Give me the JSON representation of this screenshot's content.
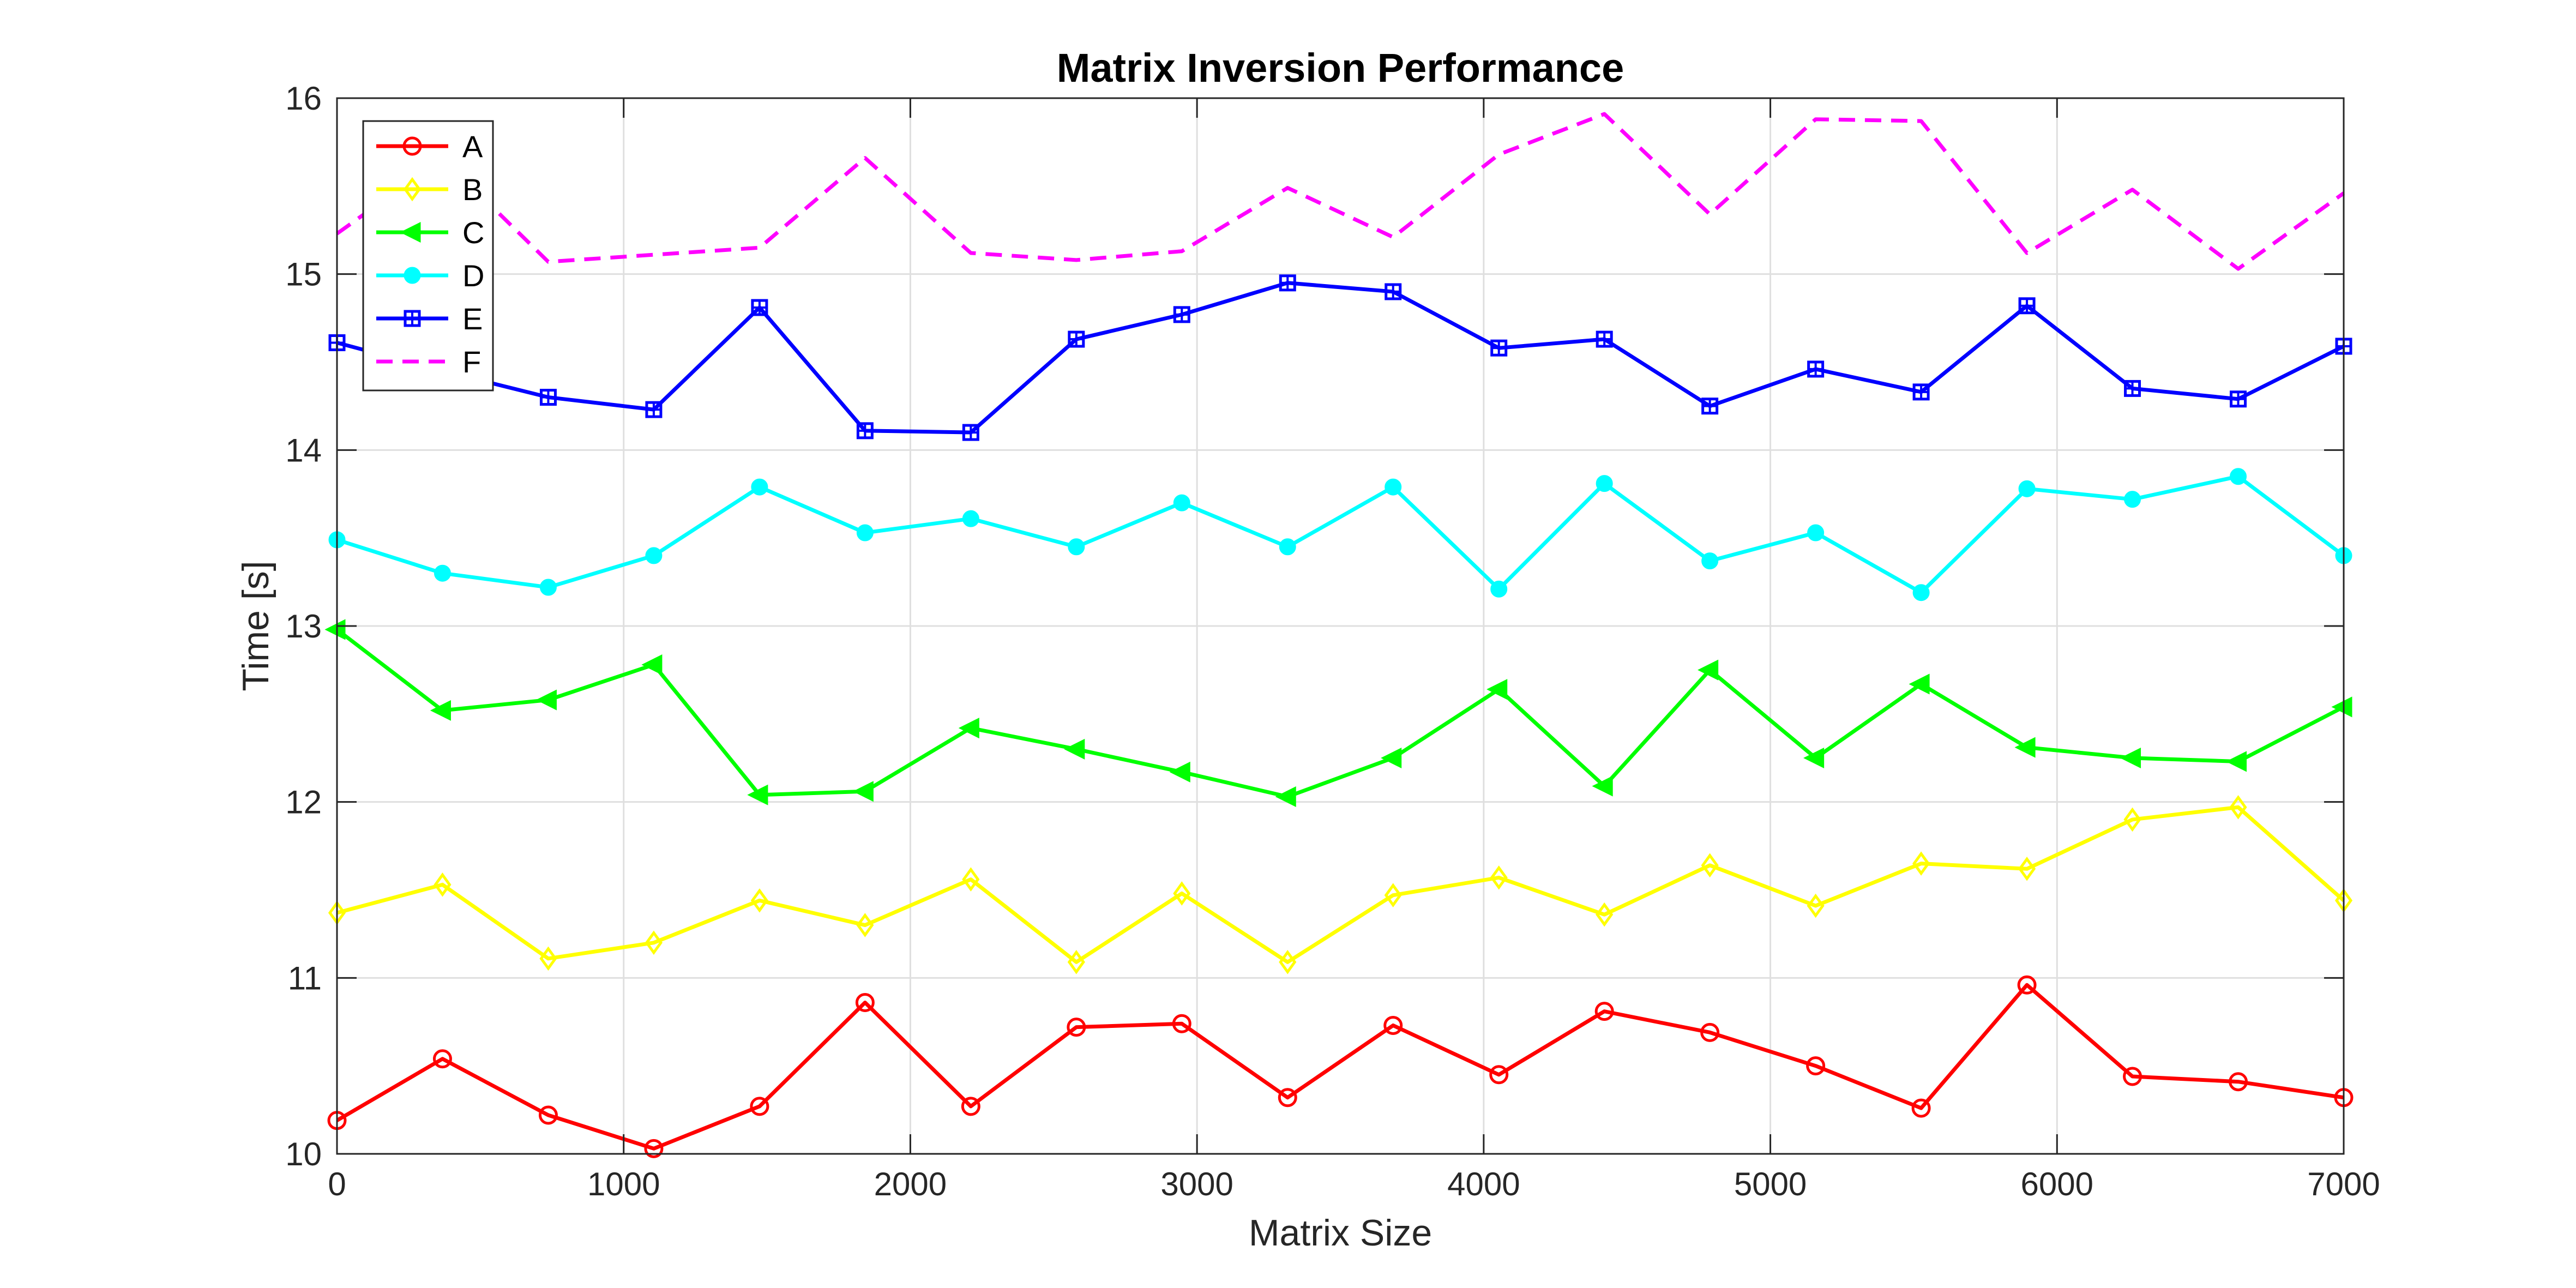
{
  "chart_data": {
    "type": "line",
    "title": "Matrix Inversion Performance",
    "xlabel": "Matrix Size",
    "ylabel": "Time [s]",
    "xlim": [
      0,
      7000
    ],
    "ylim": [
      10,
      16
    ],
    "xticks": [
      0,
      1000,
      2000,
      3000,
      4000,
      5000,
      6000,
      7000
    ],
    "yticks": [
      10,
      11,
      12,
      13,
      14,
      15,
      16
    ],
    "xtick_labels": [
      "0",
      "1000",
      "2000",
      "3000",
      "4000",
      "5000",
      "6000",
      "7000"
    ],
    "ytick_labels": [
      "10",
      "11",
      "12",
      "13",
      "14",
      "15",
      "16"
    ],
    "grid": true,
    "legend_position": "top-left",
    "x": [
      0,
      368,
      737,
      1105,
      1474,
      1842,
      2211,
      2579,
      2947,
      3316,
      3684,
      4053,
      4421,
      4789,
      5158,
      5526,
      5895,
      6263,
      6632,
      7000
    ],
    "series": [
      {
        "name": "A",
        "color": "#ff0000",
        "marker": "circle",
        "line_style": "solid",
        "values": [
          10.19,
          10.54,
          10.22,
          10.03,
          10.27,
          10.86,
          10.27,
          10.72,
          10.74,
          10.32,
          10.73,
          10.45,
          10.81,
          10.69,
          10.5,
          10.26,
          10.96,
          10.44,
          10.41,
          10.32
        ]
      },
      {
        "name": "B",
        "color": "#ffff00",
        "marker": "diamond",
        "line_style": "solid",
        "values": [
          11.37,
          11.53,
          11.11,
          11.2,
          11.44,
          11.3,
          11.56,
          11.09,
          11.48,
          11.09,
          11.47,
          11.57,
          11.36,
          11.64,
          11.41,
          11.65,
          11.62,
          11.9,
          11.97,
          11.44
        ]
      },
      {
        "name": "C",
        "color": "#00ff00",
        "marker": "triangle-left",
        "line_style": "solid",
        "values": [
          12.98,
          12.52,
          12.58,
          12.78,
          12.04,
          12.06,
          12.42,
          12.3,
          12.17,
          12.03,
          12.25,
          12.64,
          12.09,
          12.75,
          12.25,
          12.67,
          12.31,
          12.25,
          12.23,
          12.54
        ]
      },
      {
        "name": "D",
        "color": "#00ffff",
        "marker": "filled-circle",
        "line_style": "solid",
        "values": [
          13.49,
          13.3,
          13.22,
          13.4,
          13.79,
          13.53,
          13.61,
          13.45,
          13.7,
          13.45,
          13.79,
          13.21,
          13.81,
          13.37,
          13.53,
          13.19,
          13.78,
          13.72,
          13.85,
          13.4
        ]
      },
      {
        "name": "E",
        "color": "#0000ff",
        "marker": "square",
        "line_style": "solid",
        "values": [
          14.61,
          14.45,
          14.3,
          14.23,
          14.81,
          14.11,
          14.1,
          14.63,
          14.77,
          14.95,
          14.9,
          14.58,
          14.63,
          14.25,
          14.46,
          14.33,
          14.82,
          14.35,
          14.29,
          14.59
        ]
      },
      {
        "name": "F",
        "color": "#ff00ff",
        "marker": "none",
        "line_style": "dashed",
        "values": [
          15.23,
          15.66,
          15.07,
          15.11,
          15.15,
          15.66,
          15.12,
          15.08,
          15.13,
          15.49,
          15.21,
          15.68,
          15.91,
          15.34,
          15.88,
          15.87,
          15.12,
          15.48,
          15.03,
          15.46
        ]
      }
    ]
  }
}
